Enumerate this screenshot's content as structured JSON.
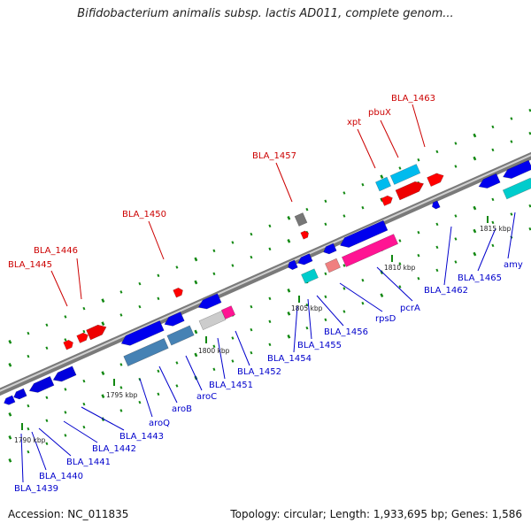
{
  "title": "Bifidobacterium animalis subsp. lactis AD011, complete genom...",
  "footer": {
    "accession": "Accession: NC_011835",
    "summary": "Topology: circular; Length: 1,933,695 bp; Genes: 1,586"
  },
  "colors": {
    "forward_label": "#cc0000",
    "reverse_label": "#0000cc",
    "backbone": "#999999",
    "tick": "#118811"
  },
  "scale_labels": [
    "1790 kbp",
    "1795 kbp",
    "1800 kbp",
    "1805 kbp",
    "1810 kbp",
    "1815 kbp"
  ],
  "top_labels": [
    "BLA_1445",
    "BLA_1446",
    "BLA_1450",
    "BLA_1457",
    "xpt",
    "pbuX",
    "BLA_1463"
  ],
  "bottom_labels": [
    "BLA_1439",
    "BLA_1440",
    "BLA_1441",
    "BLA_1442",
    "BLA_1443",
    "aroQ",
    "aroB",
    "aroC",
    "BLA_1451",
    "BLA_1452",
    "BLA_1454",
    "BLA_1455",
    "BLA_1456",
    "rpsD",
    "pcrA",
    "BLA_1462",
    "BLA_1465",
    "amy"
  ]
}
